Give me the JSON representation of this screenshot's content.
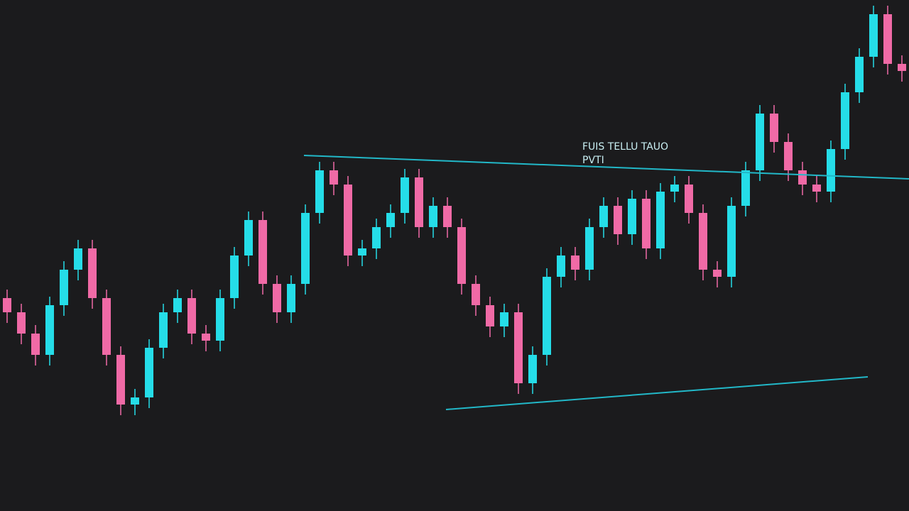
{
  "chart_data": {
    "type": "candlestick",
    "annotations": [
      "FUIS TELLU TAUO",
      "PVTI"
    ],
    "annotation_color": "#c8eef2",
    "background": "#1b1b1d",
    "up_color": "#25dde8",
    "down_color": "#f06aa6",
    "xlim": [
      -0.5,
      63.5
    ],
    "ylim": [
      0,
      720
    ],
    "open": [
      300,
      280,
      250,
      220,
      290,
      340,
      370,
      300,
      220,
      150,
      160,
      230,
      280,
      300,
      250,
      240,
      300,
      360,
      410,
      320,
      280,
      320,
      420,
      480,
      460,
      360,
      370,
      400,
      420,
      470,
      400,
      430,
      400,
      320,
      290,
      260,
      280,
      180,
      220,
      330,
      360,
      340,
      400,
      430,
      390,
      440,
      370,
      450,
      460,
      420,
      340,
      330,
      430,
      480,
      560,
      520,
      480,
      460,
      450,
      510,
      590,
      640,
      700,
      630
    ],
    "high": [
      312,
      292,
      262,
      302,
      352,
      382,
      382,
      312,
      232,
      172,
      242,
      292,
      312,
      312,
      262,
      312,
      372,
      422,
      422,
      332,
      332,
      432,
      492,
      492,
      472,
      382,
      412,
      432,
      482,
      482,
      442,
      442,
      412,
      332,
      302,
      292,
      292,
      232,
      342,
      372,
      372,
      412,
      442,
      442,
      452,
      452,
      462,
      472,
      472,
      432,
      352,
      442,
      492,
      572,
      572,
      532,
      492,
      472,
      522,
      602,
      652,
      712,
      712,
      642
    ],
    "low": [
      265,
      235,
      205,
      205,
      275,
      325,
      285,
      205,
      135,
      135,
      145,
      215,
      265,
      235,
      225,
      225,
      285,
      345,
      305,
      265,
      265,
      305,
      405,
      445,
      345,
      345,
      355,
      385,
      405,
      385,
      385,
      385,
      305,
      275,
      245,
      245,
      165,
      165,
      205,
      315,
      325,
      325,
      385,
      375,
      375,
      355,
      355,
      435,
      405,
      325,
      315,
      315,
      415,
      465,
      505,
      465,
      445,
      435,
      435,
      495,
      575,
      625,
      615,
      605
    ],
    "close": [
      280,
      250,
      220,
      290,
      340,
      370,
      300,
      220,
      150,
      160,
      230,
      280,
      300,
      250,
      240,
      300,
      360,
      410,
      320,
      280,
      320,
      420,
      480,
      460,
      360,
      370,
      400,
      420,
      470,
      400,
      430,
      400,
      320,
      290,
      260,
      280,
      180,
      220,
      330,
      360,
      340,
      400,
      430,
      390,
      440,
      370,
      450,
      460,
      420,
      340,
      330,
      430,
      480,
      560,
      520,
      480,
      460,
      450,
      510,
      590,
      640,
      700,
      630,
      620
    ],
    "trendlines": [
      {
        "color": "#22b8c8",
        "x": [
          20.9,
          63.5
        ],
        "y": [
          501,
          468
        ]
      },
      {
        "color": "#22b8c8",
        "x": [
          30.9,
          60.6
        ],
        "y": [
          143,
          189
        ]
      }
    ]
  }
}
